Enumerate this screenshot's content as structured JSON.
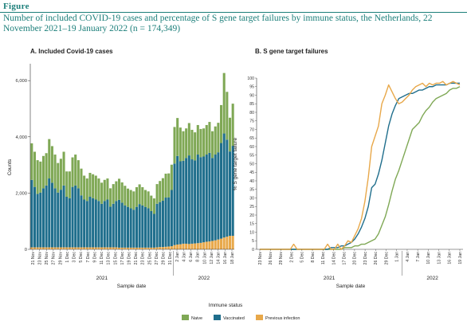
{
  "figure": {
    "label": "Figure",
    "title": "Number of included COVID-19 cases and percentage of S gene target failures by immune status, the Netherlands, 22 November 2021–19 January 2022 (n = 174,349)"
  },
  "colors": {
    "naive": "#7fa855",
    "vaccinated": "#1f6e8c",
    "previous": "#e8a84a"
  },
  "legend": {
    "title": "Immune status",
    "items": [
      {
        "key": "naive",
        "label": "Naive"
      },
      {
        "key": "vaccinated",
        "label": "Vaccinated"
      },
      {
        "key": "previous",
        "label": "Previous infection"
      }
    ]
  },
  "chart_data": [
    {
      "type": "bar",
      "stacked": true,
      "title": "A. Included Covid-19 cases",
      "xlabel": "Sample date",
      "ylabel": "Counts",
      "ylim": [
        0,
        6600
      ],
      "yticks": [
        0,
        2000,
        4000,
        6000
      ],
      "ytick_labels": [
        "0",
        "2,000",
        "4,000",
        "6,000"
      ],
      "grid": false,
      "legend_position": "bottom",
      "tick_labels": [
        "21 Nov",
        "23 Nov",
        "25 Nov",
        "27 Nov",
        "29 Nov",
        "1 Dec",
        "3 Dec",
        "5 Dec",
        "7 Dec",
        "9 Dec",
        "11 Dec",
        "13 Dec",
        "15 Dec",
        "17 Dec",
        "19 Dec",
        "21 Dec",
        "23 Dec",
        "25 Dec",
        "27 Dec",
        "29 Dec",
        "31 Dec",
        "2 Jan",
        "4 Jan",
        "6 Jan",
        "8 Jan",
        "10 Jan",
        "12 Jan",
        "14 Jan",
        "16 Jan",
        "18 Jan"
      ],
      "years": [
        "2021",
        "2022"
      ],
      "series": [
        {
          "name": "Previous infection",
          "key": "previous",
          "values": [
            70,
            70,
            70,
            70,
            70,
            70,
            70,
            70,
            70,
            70,
            70,
            70,
            70,
            70,
            70,
            70,
            70,
            70,
            70,
            70,
            70,
            70,
            70,
            70,
            70,
            70,
            70,
            70,
            70,
            70,
            60,
            60,
            60,
            60,
            60,
            60,
            60,
            60,
            60,
            60,
            60,
            60,
            60,
            70,
            80,
            80,
            90,
            100,
            110,
            150,
            170,
            180,
            200,
            200,
            190,
            200,
            210,
            220,
            230,
            250,
            270,
            280,
            300,
            320,
            350,
            380,
            420,
            450,
            480,
            480
          ]
        },
        {
          "name": "Vaccinated",
          "key": "vaccinated",
          "values": [
            2400,
            2150,
            1900,
            1950,
            2100,
            2200,
            2450,
            2300,
            2100,
            1950,
            2050,
            2200,
            1800,
            1750,
            2150,
            2200,
            2100,
            1850,
            1700,
            1650,
            1800,
            1750,
            1700,
            1650,
            1550,
            1650,
            1700,
            1450,
            1550,
            1650,
            1700,
            1600,
            1500,
            1450,
            1400,
            1350,
            1450,
            1550,
            1500,
            1450,
            1400,
            1300,
            1200,
            1550,
            1600,
            1650,
            1750,
            1750,
            2000,
            2900,
            3150,
            2950,
            2950,
            3050,
            3150,
            3000,
            2950,
            3150,
            3050,
            3050,
            3100,
            3150,
            2950,
            3050,
            3100,
            3400,
            3700,
            3450,
            3000,
            3200
          ]
        },
        {
          "name": "Naive",
          "key": "naive",
          "values": [
            1300,
            1250,
            1200,
            1100,
            1150,
            1150,
            1400,
            1300,
            1200,
            1050,
            1100,
            1200,
            900,
            950,
            1050,
            1100,
            1000,
            950,
            850,
            800,
            850,
            850,
            850,
            800,
            750,
            750,
            750,
            650,
            700,
            700,
            750,
            720,
            700,
            650,
            650,
            650,
            700,
            700,
            650,
            600,
            600,
            550,
            550,
            700,
            750,
            800,
            850,
            850,
            900,
            1300,
            1350,
            1200,
            1050,
            1050,
            1150,
            1050,
            1000,
            1050,
            1000,
            1000,
            1050,
            1100,
            950,
            1000,
            1050,
            1350,
            2150,
            1700,
            1200,
            1500
          ]
        }
      ]
    },
    {
      "type": "line",
      "title": "B. S gene target failures",
      "xlabel": "Sample date",
      "ylabel": "% S gene target failure",
      "ylim": [
        0,
        100
      ],
      "yticks": [
        0,
        5,
        10,
        15,
        20,
        25,
        30,
        35,
        40,
        45,
        50,
        55,
        60,
        65,
        70,
        75,
        80,
        85,
        90,
        95,
        100
      ],
      "grid": false,
      "legend_position": "bottom",
      "tick_labels": [
        "23 Nov",
        "26 Nov",
        "29 Nov",
        "2 Dec",
        "5 Dec",
        "8 Dec",
        "11 Dec",
        "14 Dec",
        "17 Dec",
        "20 Dec",
        "23 Dec",
        "26 Dec",
        "29 Dec",
        "1 Jan",
        "4 Jan",
        "7 Jan",
        "10 Jan",
        "13 Jan",
        "16 Jan",
        "19 Jan"
      ],
      "years": [
        "2021",
        "2022"
      ],
      "series": [
        {
          "name": "Naive",
          "key": "naive",
          "values": [
            0,
            0,
            0,
            0,
            0,
            0,
            0,
            0,
            0,
            0,
            0,
            0,
            0,
            0,
            0,
            0,
            0,
            0,
            0,
            0,
            0,
            0,
            0,
            0,
            0,
            1,
            1,
            1,
            2,
            2,
            3,
            3,
            4,
            5,
            6,
            9,
            14,
            19,
            26,
            34,
            41,
            46,
            52,
            58,
            64,
            70,
            72,
            74,
            78,
            81,
            83,
            86,
            88,
            89,
            90,
            91,
            93,
            94,
            94,
            95
          ]
        },
        {
          "name": "Vaccinated",
          "key": "vaccinated",
          "values": [
            0,
            0,
            0,
            0,
            0,
            0,
            0,
            0,
            0,
            0,
            0,
            0,
            0,
            0,
            0,
            0,
            0,
            0,
            0,
            0,
            0,
            1,
            1,
            1,
            2,
            2,
            3,
            4,
            6,
            9,
            13,
            18,
            25,
            36,
            38,
            44,
            52,
            62,
            72,
            79,
            84,
            88,
            89,
            90,
            91,
            91,
            92,
            93,
            93,
            94,
            95,
            95,
            96,
            96,
            96,
            96,
            97,
            97,
            97,
            97
          ]
        },
        {
          "name": "Previous infection",
          "key": "previous",
          "values": [
            0,
            0,
            0,
            0,
            0,
            0,
            0,
            0,
            0,
            0,
            3,
            0,
            0,
            0,
            0,
            0,
            0,
            0,
            0,
            0,
            3,
            0,
            0,
            3,
            0,
            2,
            5,
            4,
            8,
            12,
            18,
            28,
            42,
            60,
            66,
            72,
            85,
            90,
            96,
            92,
            88,
            85,
            86,
            88,
            90,
            93,
            95,
            96,
            97,
            95,
            97,
            96,
            97,
            97,
            98,
            96,
            97,
            98,
            97,
            96
          ]
        }
      ]
    }
  ]
}
